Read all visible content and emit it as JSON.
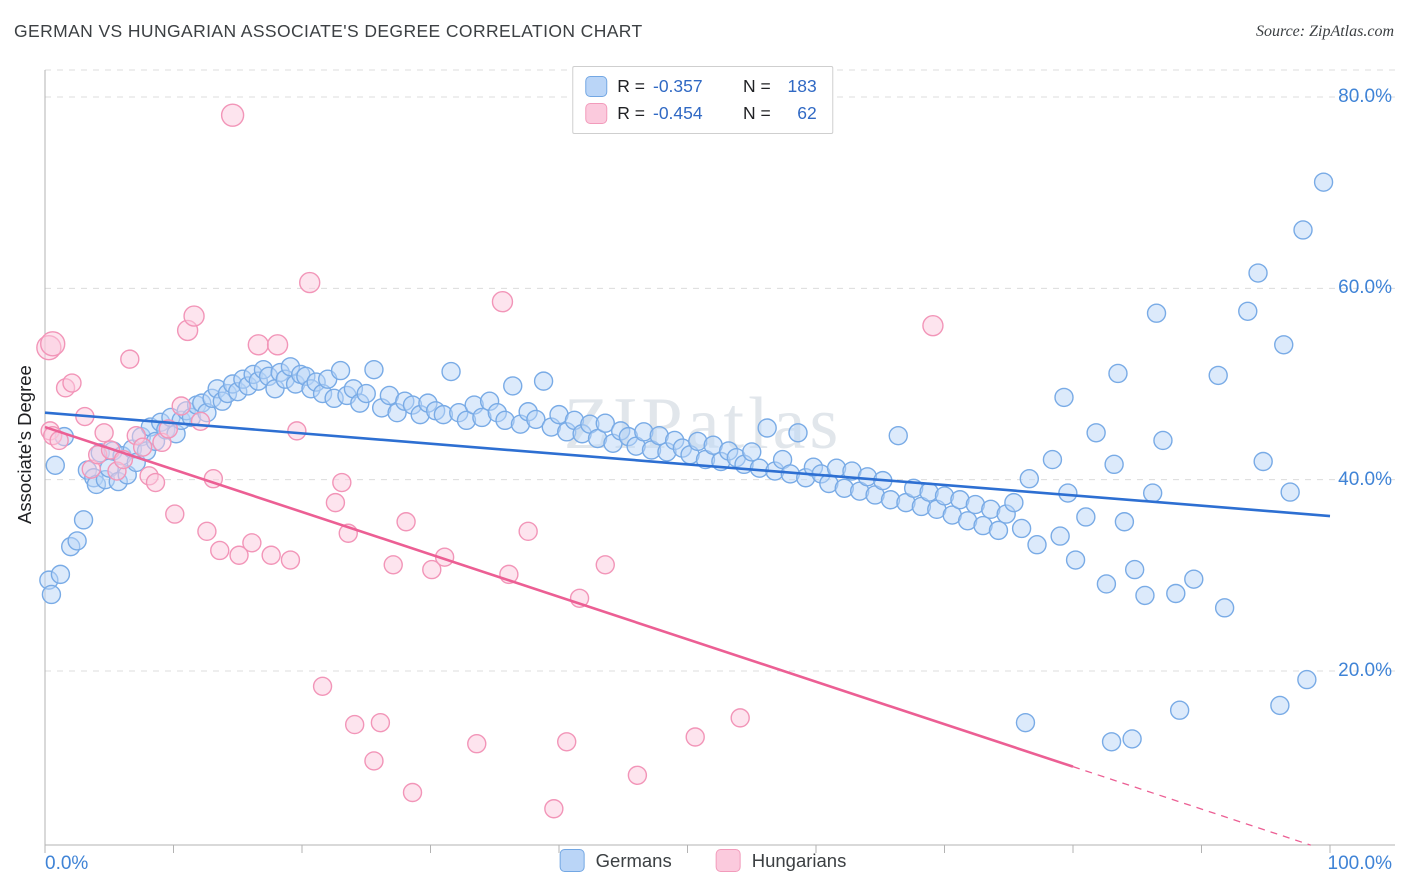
{
  "header": {
    "title": "GERMAN VS HUNGARIAN ASSOCIATE'S DEGREE CORRELATION CHART",
    "source": "Source: ZipAtlas.com"
  },
  "watermark": "ZIPatlas",
  "axes": {
    "y_label": "Associate's Degree",
    "y_ticks": [
      "80.0%",
      "60.0%",
      "40.0%",
      "20.0%"
    ],
    "x_min_label": "0.0%",
    "x_max_label": "100.0%"
  },
  "legend_box": {
    "rows": [
      {
        "r_label": "R =",
        "r_value": "-0.357",
        "n_label": "N =",
        "n_value": "183"
      },
      {
        "r_label": "R =",
        "r_value": "-0.454",
        "n_label": "N =",
        "n_value": "62"
      }
    ]
  },
  "bottom_legend": {
    "items": [
      {
        "label": "Germans"
      },
      {
        "label": "Hungarians"
      }
    ]
  },
  "chart_data": {
    "type": "scatter",
    "title": "GERMAN VS HUNGARIAN ASSOCIATE'S DEGREE CORRELATION CHART",
    "xlabel": "",
    "ylabel": "Associate's Degree",
    "xlim": [
      0,
      100
    ],
    "ylim": [
      0,
      84
    ],
    "y_gridlines": [
      80,
      60,
      40,
      20
    ],
    "grid": true,
    "legend_position": "top-center",
    "series": [
      {
        "name": "Germans",
        "R": -0.357,
        "N": 183,
        "point_fill": "#bad5f7",
        "point_stroke": "#79abe6",
        "line_color": "#2d6fd2",
        "trend": {
          "x0": 0,
          "y0": 47.0,
          "x1": 100,
          "y1": 36.2
        },
        "points": [
          [
            0.3,
            29.5
          ],
          [
            0.5,
            28.0
          ],
          [
            1.2,
            30.1
          ],
          [
            2.0,
            33.0
          ],
          [
            2.5,
            33.6
          ],
          [
            0.8,
            41.5
          ],
          [
            1.5,
            44.5
          ],
          [
            3.0,
            35.8
          ],
          [
            3.3,
            41.0
          ],
          [
            3.8,
            40.2
          ],
          [
            4.0,
            39.5
          ],
          [
            4.3,
            42.8
          ],
          [
            4.7,
            40.0
          ],
          [
            5.0,
            41.2
          ],
          [
            5.3,
            43.0
          ],
          [
            5.7,
            39.8
          ],
          [
            6.0,
            42.5
          ],
          [
            6.4,
            40.5
          ],
          [
            6.8,
            43.2
          ],
          [
            7.1,
            41.8
          ],
          [
            7.5,
            44.5
          ],
          [
            7.9,
            43.0
          ],
          [
            8.2,
            45.5
          ],
          [
            8.6,
            44.0
          ],
          [
            9.0,
            46.0
          ],
          [
            9.4,
            45.2
          ],
          [
            9.8,
            46.5
          ],
          [
            10.2,
            44.8
          ],
          [
            10.6,
            46.2
          ],
          [
            11.0,
            47.2
          ],
          [
            11.4,
            46.5
          ],
          [
            11.8,
            47.8
          ],
          [
            12.2,
            48.0
          ],
          [
            12.6,
            47.0
          ],
          [
            13.0,
            48.5
          ],
          [
            13.4,
            49.5
          ],
          [
            13.8,
            48.2
          ],
          [
            14.2,
            49.0
          ],
          [
            14.6,
            50.0
          ],
          [
            15.0,
            49.2
          ],
          [
            15.4,
            50.5
          ],
          [
            15.8,
            49.8
          ],
          [
            16.2,
            51.0
          ],
          [
            16.6,
            50.3
          ],
          [
            17.0,
            51.5
          ],
          [
            17.4,
            50.8
          ],
          [
            17.9,
            49.5
          ],
          [
            18.3,
            51.2
          ],
          [
            18.7,
            50.5
          ],
          [
            19.1,
            51.8
          ],
          [
            19.5,
            50.0
          ],
          [
            19.9,
            51.0
          ],
          [
            20.3,
            50.8
          ],
          [
            20.7,
            49.5
          ],
          [
            21.1,
            50.2
          ],
          [
            21.6,
            49.0
          ],
          [
            22.0,
            50.5
          ],
          [
            22.5,
            48.5
          ],
          [
            23.0,
            51.4
          ],
          [
            23.5,
            48.8
          ],
          [
            24.0,
            49.5
          ],
          [
            24.5,
            48.0
          ],
          [
            25.0,
            49.0
          ],
          [
            25.6,
            51.5
          ],
          [
            26.2,
            47.5
          ],
          [
            26.8,
            48.8
          ],
          [
            27.4,
            47.0
          ],
          [
            28.0,
            48.2
          ],
          [
            28.6,
            47.8
          ],
          [
            29.2,
            46.8
          ],
          [
            29.8,
            48.0
          ],
          [
            30.4,
            47.2
          ],
          [
            31.0,
            46.8
          ],
          [
            31.6,
            51.3
          ],
          [
            32.2,
            47.0
          ],
          [
            32.8,
            46.2
          ],
          [
            33.4,
            47.8
          ],
          [
            34.0,
            46.5
          ],
          [
            34.6,
            48.2
          ],
          [
            35.2,
            47.0
          ],
          [
            35.8,
            46.2
          ],
          [
            36.4,
            49.8
          ],
          [
            37.0,
            45.8
          ],
          [
            37.6,
            47.1
          ],
          [
            38.2,
            46.3
          ],
          [
            38.8,
            50.3
          ],
          [
            39.4,
            45.5
          ],
          [
            40.0,
            46.8
          ],
          [
            40.6,
            45.0
          ],
          [
            41.2,
            46.2
          ],
          [
            41.8,
            44.8
          ],
          [
            42.4,
            45.8
          ],
          [
            43.0,
            44.3
          ],
          [
            43.6,
            45.9
          ],
          [
            44.2,
            43.8
          ],
          [
            44.8,
            45.1
          ],
          [
            45.4,
            44.5
          ],
          [
            46.0,
            43.5
          ],
          [
            46.6,
            45.0
          ],
          [
            47.2,
            43.1
          ],
          [
            47.8,
            44.6
          ],
          [
            48.4,
            42.9
          ],
          [
            49.0,
            44.1
          ],
          [
            49.6,
            43.3
          ],
          [
            50.2,
            42.6
          ],
          [
            50.8,
            44.0
          ],
          [
            51.4,
            42.1
          ],
          [
            52.0,
            43.6
          ],
          [
            52.6,
            41.9
          ],
          [
            53.2,
            43.0
          ],
          [
            53.8,
            42.3
          ],
          [
            54.4,
            41.6
          ],
          [
            55.0,
            42.9
          ],
          [
            55.6,
            41.2
          ],
          [
            56.2,
            45.4
          ],
          [
            56.8,
            40.9
          ],
          [
            57.4,
            42.1
          ],
          [
            58.0,
            40.6
          ],
          [
            58.6,
            44.9
          ],
          [
            59.2,
            40.2
          ],
          [
            59.8,
            41.3
          ],
          [
            60.4,
            40.6
          ],
          [
            61.0,
            39.6
          ],
          [
            61.6,
            41.2
          ],
          [
            62.2,
            39.1
          ],
          [
            62.8,
            40.9
          ],
          [
            63.4,
            38.8
          ],
          [
            64.0,
            40.3
          ],
          [
            64.6,
            38.4
          ],
          [
            65.2,
            39.9
          ],
          [
            65.8,
            37.9
          ],
          [
            66.4,
            44.6
          ],
          [
            67.0,
            37.6
          ],
          [
            67.6,
            39.1
          ],
          [
            68.2,
            37.2
          ],
          [
            68.8,
            38.7
          ],
          [
            69.4,
            36.9
          ],
          [
            70.0,
            38.3
          ],
          [
            70.6,
            36.3
          ],
          [
            71.2,
            37.9
          ],
          [
            71.8,
            35.7
          ],
          [
            72.4,
            37.4
          ],
          [
            73.0,
            35.2
          ],
          [
            73.6,
            36.9
          ],
          [
            74.2,
            34.7
          ],
          [
            74.8,
            36.4
          ],
          [
            75.4,
            37.6
          ],
          [
            76.0,
            34.9
          ],
          [
            76.6,
            40.1
          ],
          [
            77.2,
            33.2
          ],
          [
            76.3,
            14.6
          ],
          [
            78.4,
            42.1
          ],
          [
            79.0,
            34.1
          ],
          [
            79.6,
            38.6
          ],
          [
            80.2,
            31.6
          ],
          [
            81.0,
            36.1
          ],
          [
            81.8,
            44.9
          ],
          [
            82.6,
            29.1
          ],
          [
            83.2,
            41.6
          ],
          [
            84.0,
            35.6
          ],
          [
            84.8,
            30.6
          ],
          [
            85.6,
            27.9
          ],
          [
            86.2,
            38.6
          ],
          [
            87.0,
            44.1
          ],
          [
            88.0,
            28.1
          ],
          [
            89.4,
            29.6
          ],
          [
            91.8,
            26.6
          ],
          [
            94.8,
            41.9
          ],
          [
            96.9,
            38.7
          ],
          [
            79.3,
            48.6
          ],
          [
            83.5,
            51.1
          ],
          [
            86.5,
            57.4
          ],
          [
            91.3,
            50.9
          ],
          [
            93.6,
            57.6
          ],
          [
            94.4,
            61.6
          ],
          [
            96.4,
            54.1
          ],
          [
            97.9,
            66.1
          ],
          [
            99.5,
            71.1
          ],
          [
            83.0,
            12.6
          ],
          [
            84.6,
            12.9
          ],
          [
            88.3,
            15.9
          ],
          [
            96.1,
            16.4
          ],
          [
            98.2,
            19.1
          ]
        ]
      },
      {
        "name": "Hungarians",
        "R": -0.454,
        "N": 62,
        "point_fill": "#fbcadd",
        "point_stroke": "#f295b8",
        "line_color": "#ec5f94",
        "trend": {
          "x0": 0,
          "y0": 45.5,
          "x1": 80,
          "y1": 10.0,
          "dash_x1": 98.5,
          "dash_y1": 1.8
        },
        "points": [
          [
            0.3,
            53.8,
            12
          ],
          [
            0.6,
            54.2,
            12
          ],
          [
            1.6,
            49.6
          ],
          [
            2.1,
            50.1
          ],
          [
            0.4,
            45.1
          ],
          [
            0.6,
            44.6
          ],
          [
            1.1,
            44.1
          ],
          [
            3.1,
            46.6
          ],
          [
            3.6,
            41.1
          ],
          [
            4.1,
            42.6
          ],
          [
            4.6,
            44.9
          ],
          [
            5.1,
            43.1
          ],
          [
            5.6,
            40.9
          ],
          [
            6.1,
            42.1
          ],
          [
            6.6,
            52.6
          ],
          [
            7.1,
            44.6
          ],
          [
            7.6,
            43.4
          ],
          [
            8.1,
            40.4
          ],
          [
            8.6,
            39.7
          ],
          [
            9.1,
            43.9
          ],
          [
            9.6,
            45.3
          ],
          [
            10.1,
            36.4
          ],
          [
            10.6,
            47.7
          ],
          [
            11.1,
            55.6,
            10
          ],
          [
            11.6,
            57.1,
            10
          ],
          [
            12.1,
            46.1
          ],
          [
            12.6,
            34.6
          ],
          [
            13.1,
            40.1
          ],
          [
            13.6,
            32.6
          ],
          [
            14.6,
            78.1,
            11
          ],
          [
            15.1,
            32.1
          ],
          [
            16.1,
            33.4
          ],
          [
            16.6,
            54.1,
            10
          ],
          [
            17.6,
            32.1
          ],
          [
            18.1,
            54.1,
            10
          ],
          [
            19.1,
            31.6
          ],
          [
            19.6,
            45.1
          ],
          [
            20.6,
            60.6,
            10
          ],
          [
            21.6,
            18.4
          ],
          [
            22.6,
            37.6
          ],
          [
            23.1,
            39.7
          ],
          [
            23.6,
            34.4
          ],
          [
            24.1,
            14.4
          ],
          [
            25.6,
            10.6
          ],
          [
            26.1,
            14.6
          ],
          [
            27.1,
            31.1
          ],
          [
            28.1,
            35.6
          ],
          [
            28.6,
            7.3
          ],
          [
            30.1,
            30.6
          ],
          [
            31.1,
            31.9
          ],
          [
            33.6,
            12.4
          ],
          [
            35.6,
            58.6,
            10
          ],
          [
            36.1,
            30.1
          ],
          [
            37.6,
            34.6
          ],
          [
            39.6,
            5.6
          ],
          [
            40.6,
            12.6
          ],
          [
            41.6,
            27.6
          ],
          [
            43.6,
            31.1
          ],
          [
            46.1,
            9.1
          ],
          [
            50.6,
            13.1
          ],
          [
            54.1,
            15.1
          ],
          [
            69.1,
            56.1,
            10
          ]
        ]
      }
    ]
  }
}
